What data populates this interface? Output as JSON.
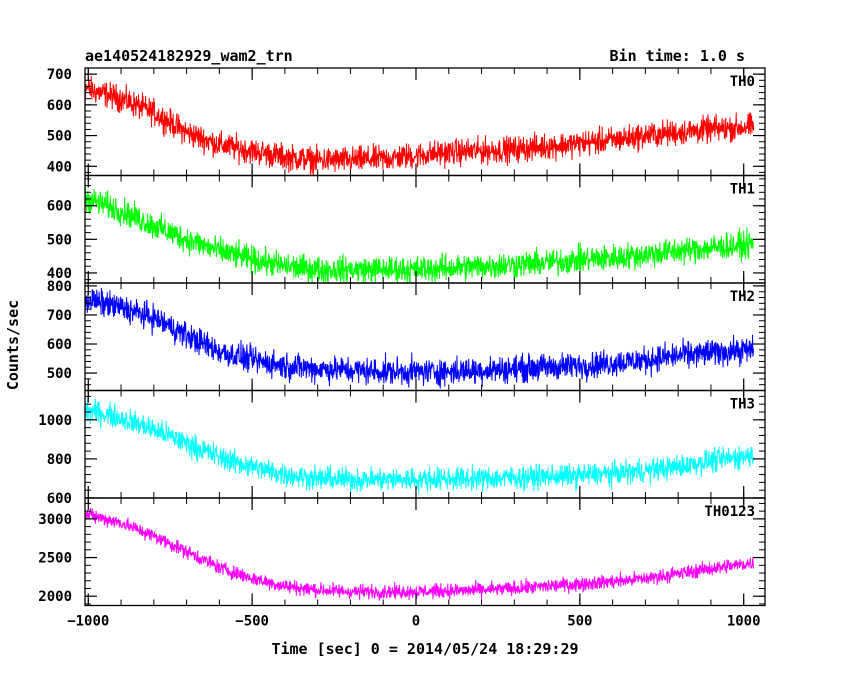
{
  "header": {
    "title": "ae140524182929_wam2_trn",
    "bin_time": "Bin time: 1.0 s"
  },
  "chart_data": {
    "type": "line",
    "xlabel": "Time [sec] 0 = 2014/05/24 18:29:29",
    "ylabel": "Counts/sec",
    "xlim": [
      -1010,
      1065
    ],
    "x_ticks": [
      -1000,
      -500,
      0,
      500,
      1000
    ],
    "x_tick_labels": [
      "−1000",
      "−500",
      "0",
      "500",
      "1000"
    ],
    "x_data_range": [
      -1030,
      1030
    ],
    "panels": [
      {
        "name": "TH0",
        "color": "#ff0000",
        "ylim": [
          370,
          720
        ],
        "y_ticks": [
          400,
          500,
          600,
          700
        ],
        "trend": [
          [
            -1030,
            660
          ],
          [
            -900,
            620
          ],
          [
            -800,
            575
          ],
          [
            -700,
            510
          ],
          [
            -600,
            470
          ],
          [
            -500,
            450
          ],
          [
            -400,
            430
          ],
          [
            -300,
            420
          ],
          [
            -200,
            420
          ],
          [
            -100,
            425
          ],
          [
            0,
            435
          ],
          [
            100,
            445
          ],
          [
            200,
            450
          ],
          [
            300,
            455
          ],
          [
            400,
            465
          ],
          [
            500,
            475
          ],
          [
            600,
            485
          ],
          [
            700,
            500
          ],
          [
            800,
            510
          ],
          [
            900,
            520
          ],
          [
            1030,
            530
          ]
        ],
        "noise": 32
      },
      {
        "name": "TH1",
        "color": "#00ff00",
        "ylim": [
          370,
          690
        ],
        "y_ticks": [
          400,
          500,
          600
        ],
        "trend": [
          [
            -1030,
            630
          ],
          [
            -900,
            585
          ],
          [
            -800,
            540
          ],
          [
            -700,
            500
          ],
          [
            -600,
            465
          ],
          [
            -500,
            440
          ],
          [
            -400,
            420
          ],
          [
            -300,
            410
          ],
          [
            -200,
            410
          ],
          [
            -100,
            410
          ],
          [
            0,
            410
          ],
          [
            100,
            415
          ],
          [
            200,
            420
          ],
          [
            300,
            425
          ],
          [
            400,
            430
          ],
          [
            500,
            440
          ],
          [
            600,
            445
          ],
          [
            700,
            455
          ],
          [
            800,
            465
          ],
          [
            900,
            475
          ],
          [
            1030,
            485
          ]
        ],
        "noise": 30
      },
      {
        "name": "TH2",
        "color": "#0000ff",
        "ylim": [
          440,
          810
        ],
        "y_ticks": [
          500,
          600,
          700,
          800
        ],
        "trend": [
          [
            -1030,
            760
          ],
          [
            -900,
            725
          ],
          [
            -800,
            690
          ],
          [
            -700,
            630
          ],
          [
            -600,
            575
          ],
          [
            -500,
            545
          ],
          [
            -400,
            525
          ],
          [
            -300,
            515
          ],
          [
            -200,
            510
          ],
          [
            -100,
            505
          ],
          [
            0,
            505
          ],
          [
            100,
            505
          ],
          [
            200,
            510
          ],
          [
            300,
            515
          ],
          [
            400,
            520
          ],
          [
            500,
            525
          ],
          [
            600,
            535
          ],
          [
            700,
            545
          ],
          [
            800,
            560
          ],
          [
            900,
            570
          ],
          [
            1030,
            580
          ]
        ],
        "noise": 35
      },
      {
        "name": "TH3",
        "color": "#00ffff",
        "ylim": [
          600,
          1150
        ],
        "y_ticks": [
          600,
          800,
          1000
        ],
        "trend": [
          [
            -1030,
            1060
          ],
          [
            -900,
            1010
          ],
          [
            -800,
            950
          ],
          [
            -700,
            880
          ],
          [
            -600,
            810
          ],
          [
            -500,
            760
          ],
          [
            -400,
            720
          ],
          [
            -300,
            700
          ],
          [
            -200,
            695
          ],
          [
            -100,
            695
          ],
          [
            0,
            695
          ],
          [
            100,
            700
          ],
          [
            200,
            700
          ],
          [
            300,
            705
          ],
          [
            400,
            710
          ],
          [
            500,
            715
          ],
          [
            600,
            725
          ],
          [
            700,
            740
          ],
          [
            800,
            760
          ],
          [
            900,
            790
          ],
          [
            1030,
            820
          ]
        ],
        "noise": 45
      },
      {
        "name": "TH0123",
        "color": "#ff00ff",
        "ylim": [
          1880,
          3270
        ],
        "y_ticks": [
          2000,
          2500,
          3000
        ],
        "trend": [
          [
            -1030,
            3080
          ],
          [
            -900,
            2950
          ],
          [
            -800,
            2780
          ],
          [
            -700,
            2580
          ],
          [
            -600,
            2370
          ],
          [
            -500,
            2230
          ],
          [
            -400,
            2130
          ],
          [
            -300,
            2080
          ],
          [
            -200,
            2060
          ],
          [
            -100,
            2060
          ],
          [
            0,
            2060
          ],
          [
            100,
            2070
          ],
          [
            200,
            2080
          ],
          [
            300,
            2100
          ],
          [
            400,
            2130
          ],
          [
            500,
            2160
          ],
          [
            600,
            2190
          ],
          [
            700,
            2230
          ],
          [
            800,
            2290
          ],
          [
            900,
            2360
          ],
          [
            1030,
            2430
          ]
        ],
        "noise": 70
      }
    ]
  }
}
